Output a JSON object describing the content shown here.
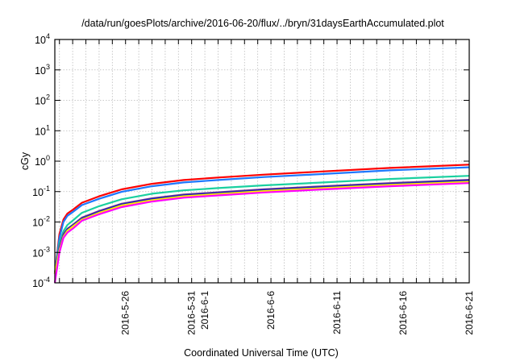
{
  "chart_data": {
    "type": "line",
    "title": "/data/run/goesPlots/archive/2016-06-20/flux/../bryn/31daysEarthAccumulated.plot",
    "xlabel": "Coordinated Universal Time (UTC)",
    "ylabel": "cGy",
    "yscale": "log",
    "ylim": [
      0.0001,
      10000
    ],
    "xlim_days_from_2016_05_21": [
      -0.35,
      31
    ],
    "grid": true,
    "legend": "none",
    "y_ticks": [
      {
        "value": 10000,
        "base": "10",
        "exp": "4"
      },
      {
        "value": 1000,
        "base": "10",
        "exp": "3"
      },
      {
        "value": 100,
        "base": "10",
        "exp": "2"
      },
      {
        "value": 10,
        "base": "10",
        "exp": "1"
      },
      {
        "value": 1,
        "base": "10",
        "exp": "0"
      },
      {
        "value": 0.1,
        "base": "10",
        "exp": "-1"
      },
      {
        "value": 0.01,
        "base": "10",
        "exp": "-2"
      },
      {
        "value": 0.001,
        "base": "10",
        "exp": "-3"
      },
      {
        "value": 0.0001,
        "base": "10",
        "exp": "-4"
      }
    ],
    "x_ticks": [
      {
        "day": 5,
        "label": "2016-5-26"
      },
      {
        "day": 10,
        "label": "2016-5-31"
      },
      {
        "day": 11,
        "label": "2016-6-1"
      },
      {
        "day": 16,
        "label": "2016-6-6"
      },
      {
        "day": 21,
        "label": "2016-6-11"
      },
      {
        "day": 26,
        "label": "2016-6-16"
      },
      {
        "day": 31,
        "label": "2016-6-21"
      }
    ],
    "x": [
      -0.35,
      0,
      0.3,
      0.6,
      1,
      1.7,
      3,
      4.7,
      7,
      9.4,
      12,
      15.5,
      20,
      25,
      31
    ],
    "series": [
      {
        "name": "red",
        "color": "#ff0000",
        "values": [
          0.0002,
          0.004,
          0.012,
          0.019,
          0.025,
          0.043,
          0.07,
          0.118,
          0.18,
          0.24,
          0.29,
          0.36,
          0.46,
          0.6,
          0.77
        ]
      },
      {
        "name": "blue",
        "color": "#1e78ff",
        "values": [
          0.0002,
          0.003,
          0.01,
          0.016,
          0.021,
          0.036,
          0.058,
          0.098,
          0.15,
          0.2,
          0.24,
          0.3,
          0.38,
          0.5,
          0.63
        ]
      },
      {
        "name": "green",
        "color": "#1ad0a0",
        "values": [
          0.0002,
          0.002,
          0.005,
          0.008,
          0.011,
          0.02,
          0.033,
          0.056,
          0.085,
          0.11,
          0.13,
          0.16,
          0.2,
          0.26,
          0.33
        ]
      },
      {
        "name": "purple",
        "color": "#7b3f8c",
        "values": [
          0.0002,
          0.0015,
          0.004,
          0.006,
          0.008,
          0.014,
          0.023,
          0.04,
          0.06,
          0.08,
          0.095,
          0.12,
          0.15,
          0.19,
          0.245
        ]
      },
      {
        "name": "dark-blue",
        "color": "#2020c0",
        "values": [
          0.0002,
          0.0014,
          0.0037,
          0.0057,
          0.0076,
          0.013,
          0.022,
          0.038,
          0.057,
          0.076,
          0.09,
          0.113,
          0.142,
          0.18,
          0.232
        ]
      },
      {
        "name": "yellow",
        "color": "#ffee00",
        "values": [
          0.0002,
          0.0012,
          0.0033,
          0.0052,
          0.007,
          0.012,
          0.02,
          0.035,
          0.052,
          0.07,
          0.083,
          0.104,
          0.13,
          0.165,
          0.21
        ]
      },
      {
        "name": "magenta",
        "color": "#ff00ff",
        "values": [
          0.0001,
          0.001,
          0.003,
          0.0045,
          0.006,
          0.011,
          0.018,
          0.031,
          0.047,
          0.063,
          0.075,
          0.094,
          0.118,
          0.15,
          0.19
        ]
      }
    ]
  }
}
